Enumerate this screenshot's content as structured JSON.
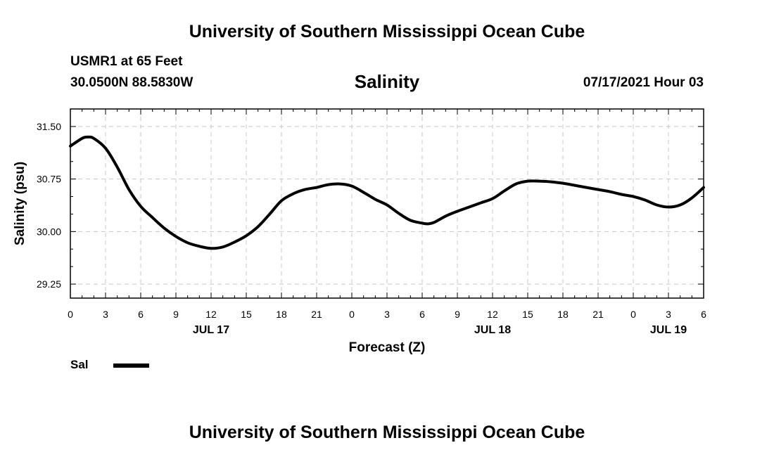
{
  "header": {
    "top_title": "University of Southern Mississippi Ocean Cube",
    "station": "USMR1 at 65 Feet",
    "coords": "30.0500N  88.5830W",
    "datetime": "07/17/2021 Hour 03",
    "bottom_title": "University of Southern Mississippi Ocean Cube"
  },
  "legend": {
    "label": "Sal",
    "color": "#000000"
  },
  "chart_data": {
    "type": "line",
    "title": "Salinity",
    "xlabel": "Forecast (Z)",
    "ylabel": "Salinity (psu)",
    "x_unit": "hours since 2021-07-17 00Z",
    "xlim": [
      0,
      54
    ],
    "ylim": [
      29.05,
      31.75
    ],
    "grid": true,
    "legend_position": "bottom-left",
    "x_ticks": [
      0,
      3,
      6,
      9,
      12,
      15,
      18,
      21,
      24,
      27,
      30,
      33,
      36,
      39,
      42,
      45,
      48,
      51,
      54
    ],
    "x_tick_labels": [
      "0",
      "3",
      "6",
      "9",
      "12",
      "15",
      "18",
      "21",
      "0",
      "3",
      "6",
      "9",
      "12",
      "15",
      "18",
      "21",
      "0",
      "3",
      "6"
    ],
    "date_labels": [
      {
        "x": 12,
        "label": "JUL 17"
      },
      {
        "x": 36,
        "label": "JUL 18"
      },
      {
        "x": 51,
        "label": "JUL 19"
      }
    ],
    "y_ticks": [
      29.25,
      30.0,
      30.75,
      31.5
    ],
    "y_tick_labels": [
      "29.25",
      "30.00",
      "30.75",
      "31.50"
    ],
    "series": [
      {
        "name": "Sal",
        "color": "#000000",
        "x": [
          0,
          1,
          1.5,
          2,
          3,
          4,
          5,
          6,
          7,
          8,
          9,
          10,
          11,
          12,
          13,
          14,
          15,
          16,
          17,
          18,
          19,
          20,
          21,
          22,
          23,
          24,
          25,
          26,
          27,
          28,
          29,
          30,
          30.5,
          31,
          32,
          33,
          34,
          35,
          36,
          37,
          38,
          39,
          40,
          41,
          42,
          43,
          44,
          45,
          46,
          47,
          48,
          49,
          50,
          51,
          52,
          53,
          54
        ],
        "y": [
          31.22,
          31.33,
          31.35,
          31.33,
          31.19,
          30.92,
          30.6,
          30.36,
          30.2,
          30.05,
          29.93,
          29.84,
          29.79,
          29.76,
          29.78,
          29.85,
          29.94,
          30.07,
          30.25,
          30.44,
          30.54,
          30.6,
          30.63,
          30.67,
          30.68,
          30.65,
          30.56,
          30.46,
          30.38,
          30.26,
          30.16,
          30.12,
          30.11,
          30.13,
          30.22,
          30.29,
          30.35,
          30.41,
          30.47,
          30.58,
          30.68,
          30.72,
          30.72,
          30.71,
          30.69,
          30.66,
          30.63,
          30.6,
          30.57,
          30.53,
          30.5,
          30.45,
          30.38,
          30.35,
          30.38,
          30.48,
          30.63
        ]
      }
    ]
  }
}
